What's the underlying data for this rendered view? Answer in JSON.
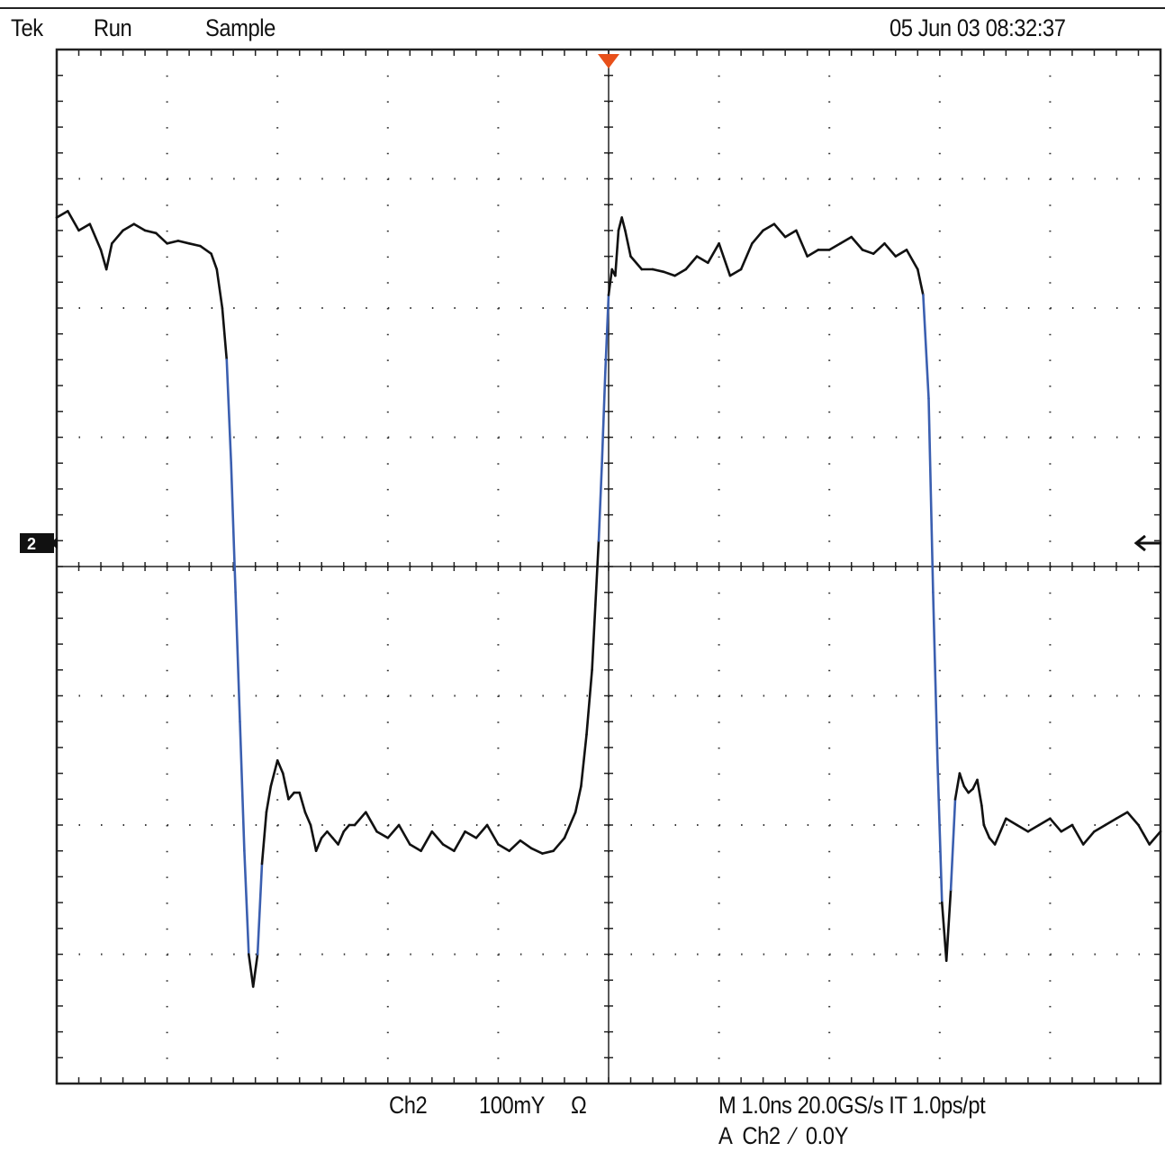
{
  "header": {
    "brand": "Tek",
    "run_state": "Run",
    "acquisition_mode": "Sample",
    "timestamp": "05 Jun 03 08:32:37"
  },
  "footer": {
    "channel": "Ch2",
    "volts_per_div": "100mY",
    "coupling_symbol": "Ω",
    "horizontal": "M 1.0ns 20.0GS/s IT 1.0ps/pt",
    "trigger": "A  Ch2  ⁄  0.0Y"
  },
  "markers": {
    "channel_marker": "2",
    "trigger_position_color": "#e8501a",
    "trace_color": "#111111",
    "edge_color": "#3b5fb0"
  },
  "chart_data": {
    "type": "line",
    "title": "",
    "xlabel": "",
    "ylabel": "",
    "x_unit": "div",
    "y_unit": "div",
    "xlim": [
      -5,
      5
    ],
    "ylim": [
      -4,
      4
    ],
    "grid": true,
    "series": [
      {
        "x": [
          -5.0,
          -4.9,
          -4.8,
          -4.7,
          -4.6,
          -4.55,
          -4.5,
          -4.4,
          -4.3,
          -4.2,
          -4.1,
          -4.0,
          -3.9,
          -3.8,
          -3.7,
          -3.6,
          -3.55,
          -3.5,
          -3.46,
          -3.42,
          -3.38,
          -3.34,
          -3.3,
          -3.26,
          -3.22,
          -3.18,
          -3.14,
          -3.1,
          -3.06,
          -3.0,
          -2.95,
          -2.9,
          -2.85,
          -2.8,
          -2.75,
          -2.7,
          -2.65,
          -2.6,
          -2.55,
          -2.5,
          -2.45,
          -2.4,
          -2.35,
          -2.3,
          -2.2,
          -2.1,
          -2.0,
          -1.9,
          -1.8,
          -1.7,
          -1.6,
          -1.5,
          -1.4,
          -1.3,
          -1.2,
          -1.1,
          -1.0,
          -0.9,
          -0.8,
          -0.7,
          -0.6,
          -0.5,
          -0.4,
          -0.3,
          -0.25,
          -0.2,
          -0.15,
          -0.12,
          -0.09,
          -0.06,
          -0.03,
          0.0,
          0.03,
          0.06,
          0.09,
          0.12,
          0.15,
          0.2,
          0.3,
          0.4,
          0.5,
          0.6,
          0.7,
          0.8,
          0.9,
          1.0,
          1.1,
          1.2,
          1.3,
          1.4,
          1.5,
          1.6,
          1.7,
          1.8,
          1.9,
          2.0,
          2.1,
          2.2,
          2.3,
          2.4,
          2.5,
          2.6,
          2.7,
          2.8,
          2.85,
          2.9,
          2.94,
          2.98,
          3.02,
          3.06,
          3.1,
          3.14,
          3.18,
          3.22,
          3.26,
          3.3,
          3.34,
          3.38,
          3.4,
          3.45,
          3.5,
          3.55,
          3.6,
          3.7,
          3.8,
          3.9,
          4.0,
          4.1,
          4.2,
          4.3,
          4.4,
          4.5,
          4.6,
          4.7,
          4.8,
          4.9,
          5.0
        ],
        "y": [
          2.7,
          2.75,
          2.6,
          2.65,
          2.45,
          2.3,
          2.5,
          2.6,
          2.65,
          2.6,
          2.58,
          2.5,
          2.52,
          2.5,
          2.48,
          2.42,
          2.3,
          2.0,
          1.6,
          0.8,
          -0.2,
          -1.2,
          -2.2,
          -3.0,
          -3.25,
          -3.0,
          -2.3,
          -1.9,
          -1.7,
          -1.5,
          -1.6,
          -1.8,
          -1.75,
          -1.75,
          -1.9,
          -2.0,
          -2.2,
          -2.1,
          -2.05,
          -2.1,
          -2.15,
          -2.05,
          -2.0,
          -2.0,
          -1.9,
          -2.05,
          -2.1,
          -2.0,
          -2.15,
          -2.2,
          -2.05,
          -2.15,
          -2.2,
          -2.05,
          -2.1,
          -2.0,
          -2.15,
          -2.2,
          -2.12,
          -2.18,
          -2.22,
          -2.2,
          -2.1,
          -1.9,
          -1.7,
          -1.3,
          -0.8,
          -0.3,
          0.2,
          0.8,
          1.5,
          2.1,
          2.3,
          2.25,
          2.6,
          2.7,
          2.6,
          2.4,
          2.3,
          2.3,
          2.28,
          2.25,
          2.3,
          2.4,
          2.35,
          2.5,
          2.25,
          2.3,
          2.5,
          2.6,
          2.65,
          2.55,
          2.6,
          2.4,
          2.45,
          2.45,
          2.5,
          2.55,
          2.45,
          2.42,
          2.5,
          2.4,
          2.45,
          2.3,
          2.1,
          1.3,
          -0.2,
          -1.5,
          -2.6,
          -3.05,
          -2.5,
          -1.8,
          -1.6,
          -1.7,
          -1.75,
          -1.72,
          -1.65,
          -1.85,
          -2.0,
          -2.1,
          -2.15,
          -2.05,
          -1.95,
          -2.0,
          -2.05,
          -2.0,
          -1.95,
          -2.05,
          -2.0,
          -2.15,
          -2.05,
          -2.0,
          -1.95,
          -1.9,
          -2.0,
          -2.15,
          -2.05
        ]
      }
    ]
  }
}
